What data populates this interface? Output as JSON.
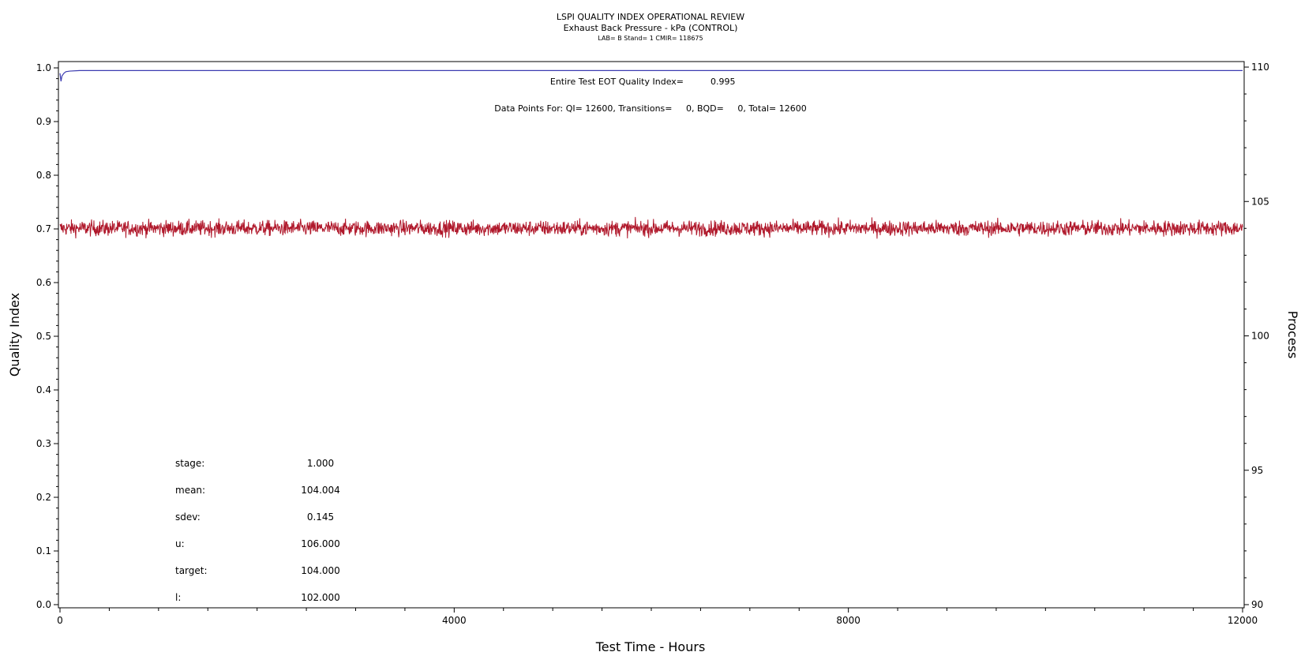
{
  "chart_data": {
    "type": "line",
    "title": "LSPI QUALITY INDEX OPERATIONAL REVIEW",
    "subtitle": "Exhaust Back Pressure - kPa (CONTROL)",
    "subtitle2": "LAB= B Stand= 1 CMIR= 118675",
    "xlabel": "Test Time - Hours",
    "ylabel": "Quality Index",
    "ylabel_right": "Process",
    "xlim": [
      0,
      12000
    ],
    "ylim": [
      0,
      1
    ],
    "ylim_right": [
      90,
      110
    ],
    "x_ticks": [
      "0",
      "4000",
      "8000",
      "12000"
    ],
    "y_ticks": [
      "0.0",
      "0.1",
      "0.2",
      "0.3",
      "0.4",
      "0.5",
      "0.6",
      "0.7",
      "0.8",
      "0.9",
      "1.0"
    ],
    "y_right_ticks": [
      "90",
      "95",
      "100",
      "105",
      "110"
    ],
    "grid": false,
    "annotations": {
      "eot_label": "Entire Test EOT Quality Index=",
      "eot_value": "0.995",
      "datapoints": "Data Points For: QI= 12600, Transitions=     0, BQD=     0, Total= 12600"
    },
    "stats": [
      {
        "label": "stage:",
        "value": "1.000"
      },
      {
        "label": "mean:",
        "value": "104.004"
      },
      {
        "label": "sdev:",
        "value": "0.145"
      },
      {
        "label": "u:",
        "value": "106.000"
      },
      {
        "label": "target:",
        "value": "104.000"
      },
      {
        "label": "l:",
        "value": "102.000"
      }
    ],
    "series": [
      {
        "axis": "left",
        "color": "#3b3bb0",
        "x": [
          0,
          10,
          20,
          40,
          60,
          100,
          200,
          500,
          1000,
          2000,
          4000,
          6000,
          8000,
          10000,
          12000
        ],
        "values": [
          0.99,
          0.975,
          0.985,
          0.99,
          0.993,
          0.994,
          0.995,
          0.995,
          0.995,
          0.995,
          0.995,
          0.995,
          0.995,
          0.995,
          0.995
        ]
      },
      {
        "axis": "right",
        "color": "#b0182b",
        "mean": 104.004,
        "sdev": 0.145,
        "x_start": 0,
        "x_end": 12000,
        "n_points": 12600
      }
    ]
  }
}
